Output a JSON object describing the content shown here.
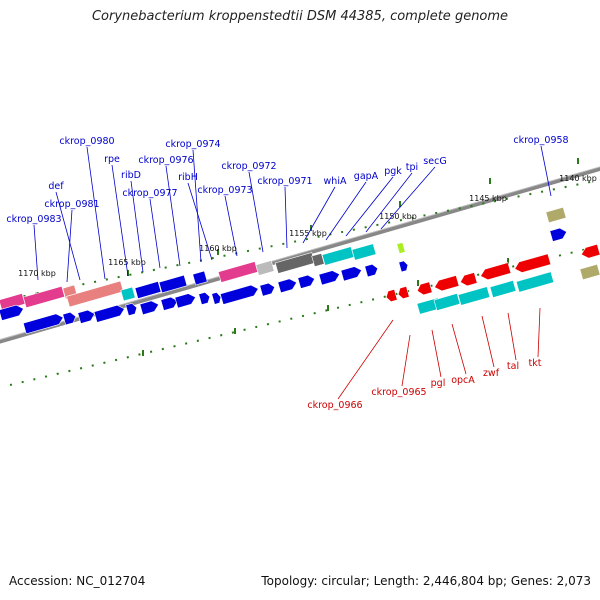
{
  "title": "Corynebacterium kroppenstedtii DSM 44385, complete genome",
  "footer": {
    "accession": "Accession: NC_012704",
    "summary": "Topology: circular; Length: 2,446,804 bp; Genes: 2,073"
  },
  "colors": {
    "forward_label": "#0000cc",
    "reverse_label": "#cc0000",
    "backbone": "#888888",
    "tick": "#2a7a1a",
    "cds_blue": "#0000dd",
    "cds_red": "#ee0000",
    "cds_cyan": "#00c4c4",
    "cds_pink": "#e33b8e",
    "cds_salmon": "#e88080",
    "cds_gray": "#666666",
    "cds_lightgray": "#bbbbbb",
    "cds_olive": "#b0aa6a",
    "cds_lime": "#aaee22"
  },
  "scale_labels": [
    "1170 kbp",
    "1165 kbp",
    "1160 kbp",
    "1155 kbp",
    "1150 kbp",
    "1145 kbp",
    "1140 kbp"
  ],
  "forward_gene_labels": [
    "ckrop_0983",
    "ckrop_0981",
    "def",
    "ckrop_0980",
    "rpe",
    "ribD",
    "ckrop_0977",
    "ckrop_0976",
    "ckrop_0974",
    "ribH",
    "ckrop_0973",
    "ckrop_0972",
    "ckrop_0971",
    "whiA",
    "gapA",
    "pgk",
    "tpi",
    "secG",
    "ckrop_0958"
  ],
  "reverse_gene_labels": [
    "ckrop_0966",
    "ckrop_0965",
    "pgl",
    "opcA",
    "zwf",
    "tal",
    "tkt"
  ]
}
